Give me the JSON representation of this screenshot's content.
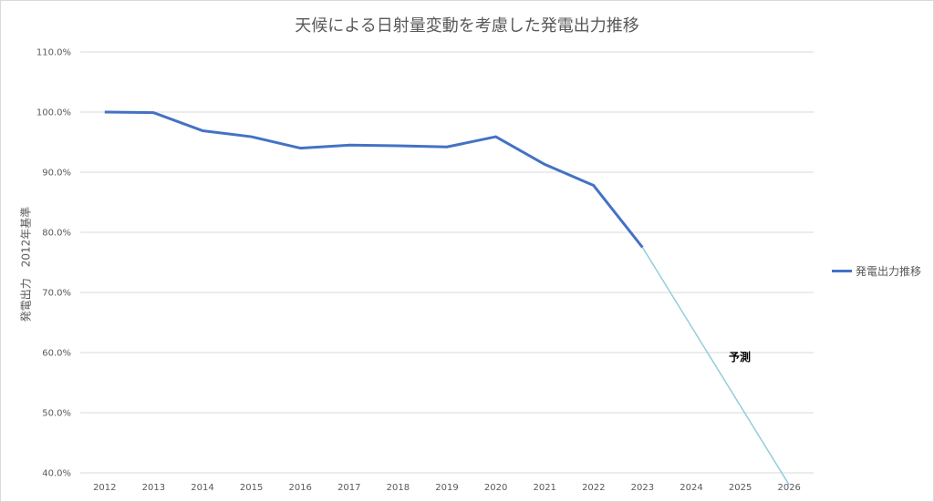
{
  "chart_data": {
    "type": "line",
    "title": "天候による日射量変動を考慮した発電出力推移",
    "xlabel": "",
    "ylabel": "発電出力　2012年基準",
    "categories": [
      "2012",
      "2013",
      "2014",
      "2015",
      "2016",
      "2017",
      "2018",
      "2019",
      "2020",
      "2021",
      "2022",
      "2023",
      "2024",
      "2025",
      "2026"
    ],
    "yticks": [
      "40.0%",
      "50.0%",
      "60.0%",
      "70.0%",
      "80.0%",
      "90.0%",
      "100.0%",
      "110.0%"
    ],
    "ylim": [
      40,
      110
    ],
    "grid": true,
    "legend_position": "right",
    "series": [
      {
        "name": "発電出力推移",
        "color": "#4472c4",
        "x": [
          "2012",
          "2013",
          "2014",
          "2015",
          "2016",
          "2017",
          "2018",
          "2019",
          "2020",
          "2021",
          "2022",
          "2023"
        ],
        "values": [
          100.0,
          99.9,
          96.9,
          95.9,
          94.0,
          94.5,
          94.4,
          94.2,
          95.9,
          91.3,
          87.8,
          77.5
        ]
      }
    ],
    "forecast": {
      "label": "予測",
      "color": "#92cddc",
      "x": [
        "2023",
        "2026"
      ],
      "values": [
        77.5,
        38.0
      ]
    }
  }
}
